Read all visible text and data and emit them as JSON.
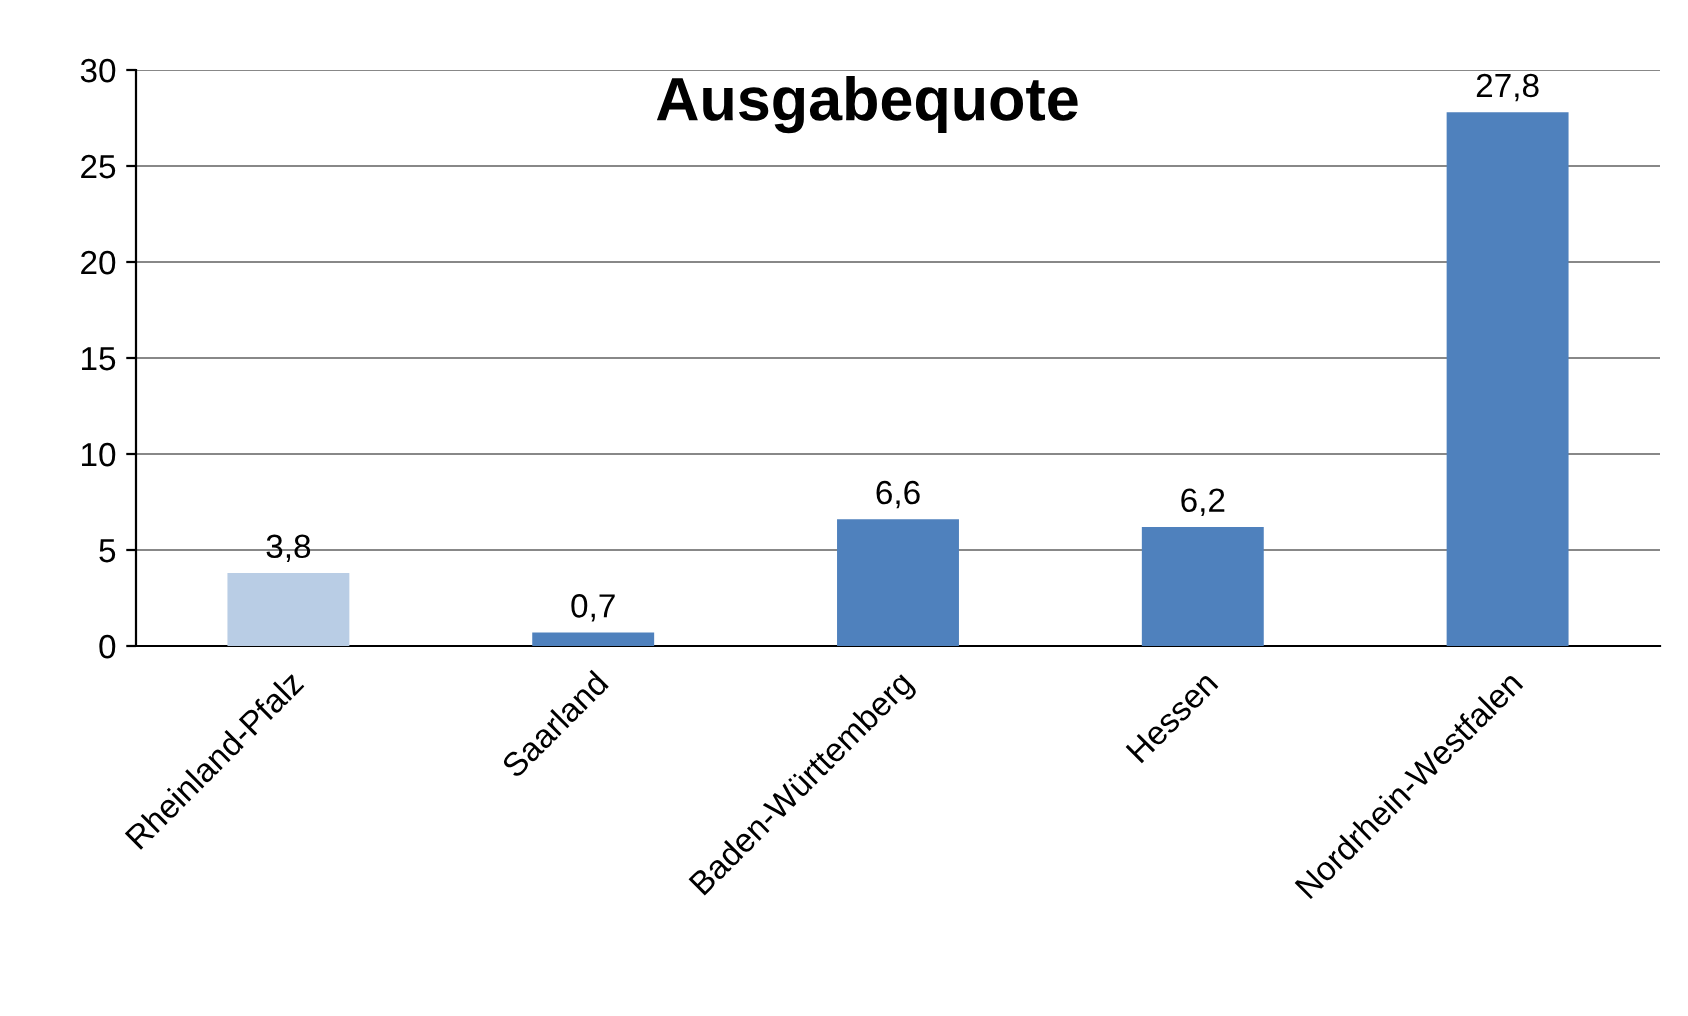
{
  "chart_data": {
    "type": "bar",
    "title": "Ausgabequote",
    "categories": [
      "Rheinland-Pfalz",
      "Saarland",
      "Baden-Württemberg",
      "Hessen",
      "Nordrhein-Westfalen"
    ],
    "values": [
      3.8,
      0.7,
      6.6,
      6.2,
      27.8
    ],
    "colors": [
      "#b9cde5",
      "#4f81bd",
      "#4f81bd",
      "#4f81bd",
      "#4f81bd"
    ],
    "value_labels": [
      "3,8",
      "0,7",
      "6,6",
      "6,2",
      "27,8"
    ],
    "ylim": [
      0,
      30
    ],
    "yticks": [
      0,
      5,
      10,
      15,
      20,
      25,
      30
    ],
    "grid": "y",
    "legend": false
  }
}
